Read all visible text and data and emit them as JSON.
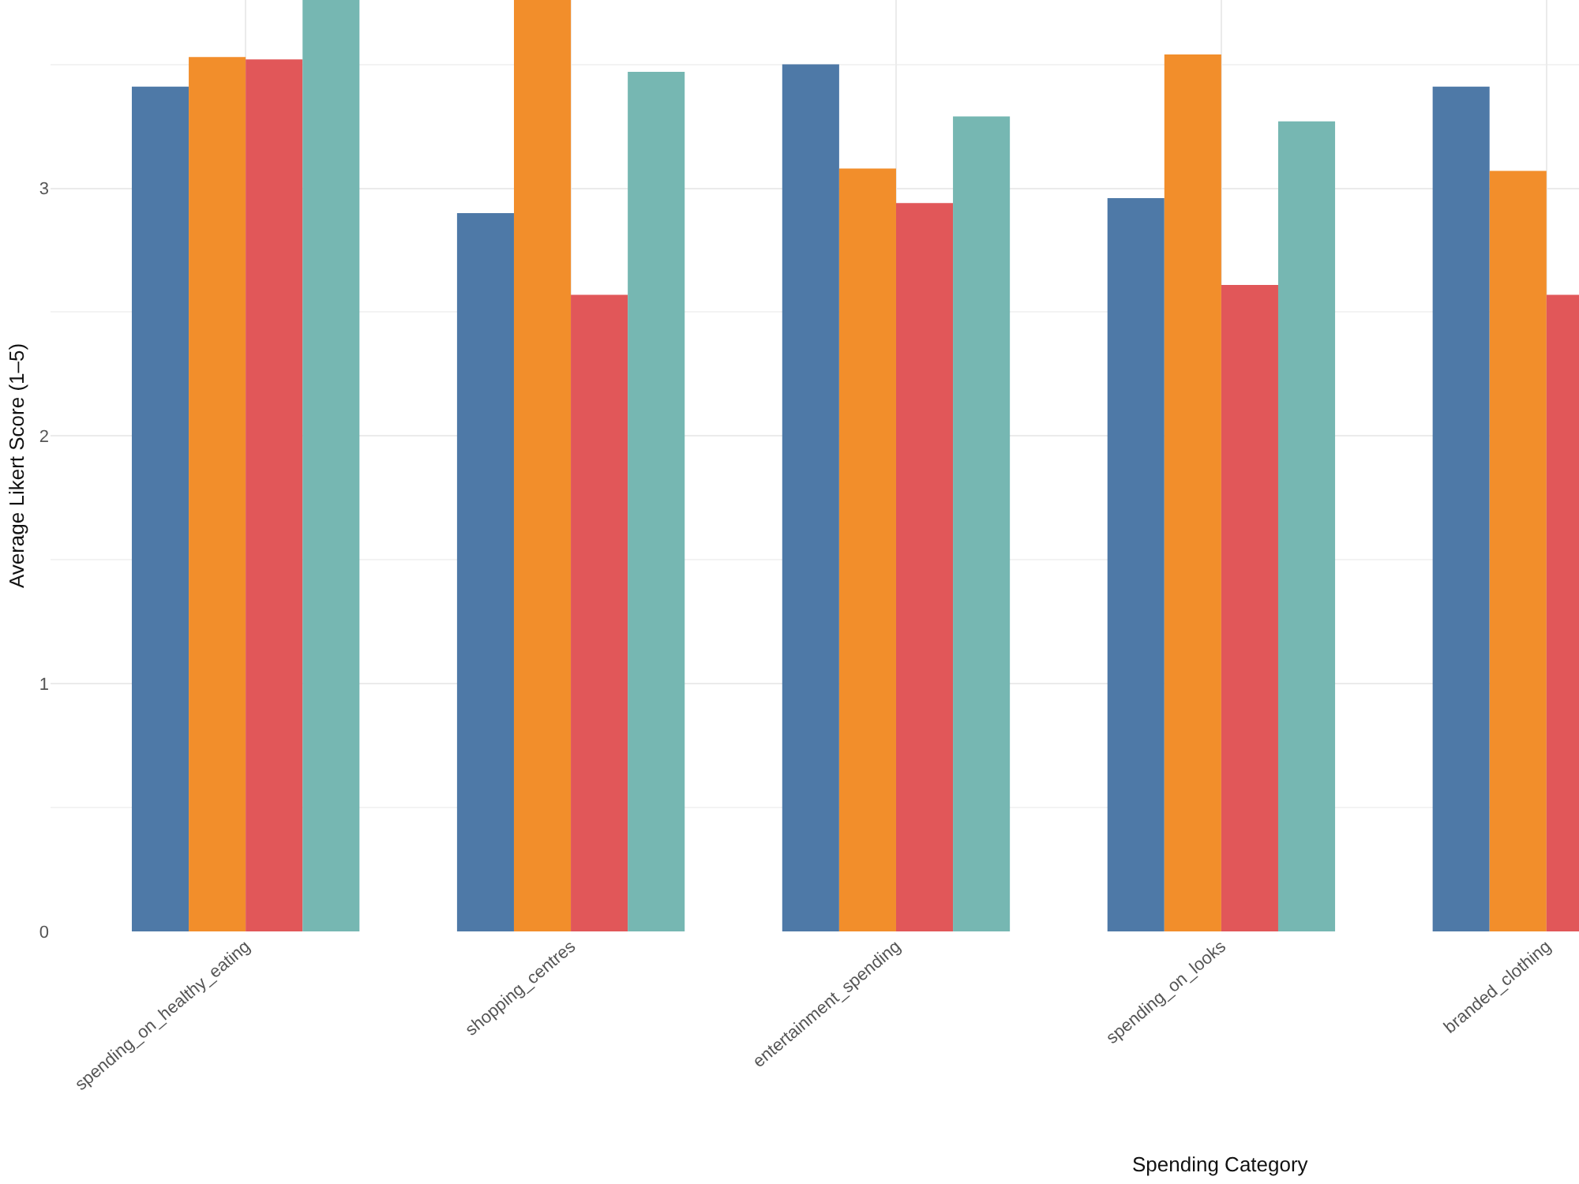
{
  "chart_data": {
    "type": "bar",
    "xlabel": "Spending Category",
    "ylabel": "Average Likert Score (1–5)",
    "categories": [
      "spending_on_healthy_eating",
      "shopping_centres",
      "entertainment_spending",
      "spending_on_looks",
      "branded_clothing"
    ],
    "series": [
      {
        "color": "#4e79a7",
        "values": [
          3.41,
          2.9,
          3.5,
          2.96,
          3.41
        ]
      },
      {
        "color": "#f28e2b",
        "values": [
          3.53,
          3.76,
          3.08,
          3.54,
          3.07
        ]
      },
      {
        "color": "#e15759",
        "values": [
          3.52,
          2.57,
          2.94,
          2.61,
          2.57
        ]
      },
      {
        "color": "#76b7b2",
        "values": [
          3.76,
          3.47,
          3.29,
          3.27,
          null
        ]
      }
    ],
    "ylim": [
      0,
      3.76
    ],
    "yticks": [
      0,
      1,
      2,
      3
    ],
    "grid": true
  }
}
